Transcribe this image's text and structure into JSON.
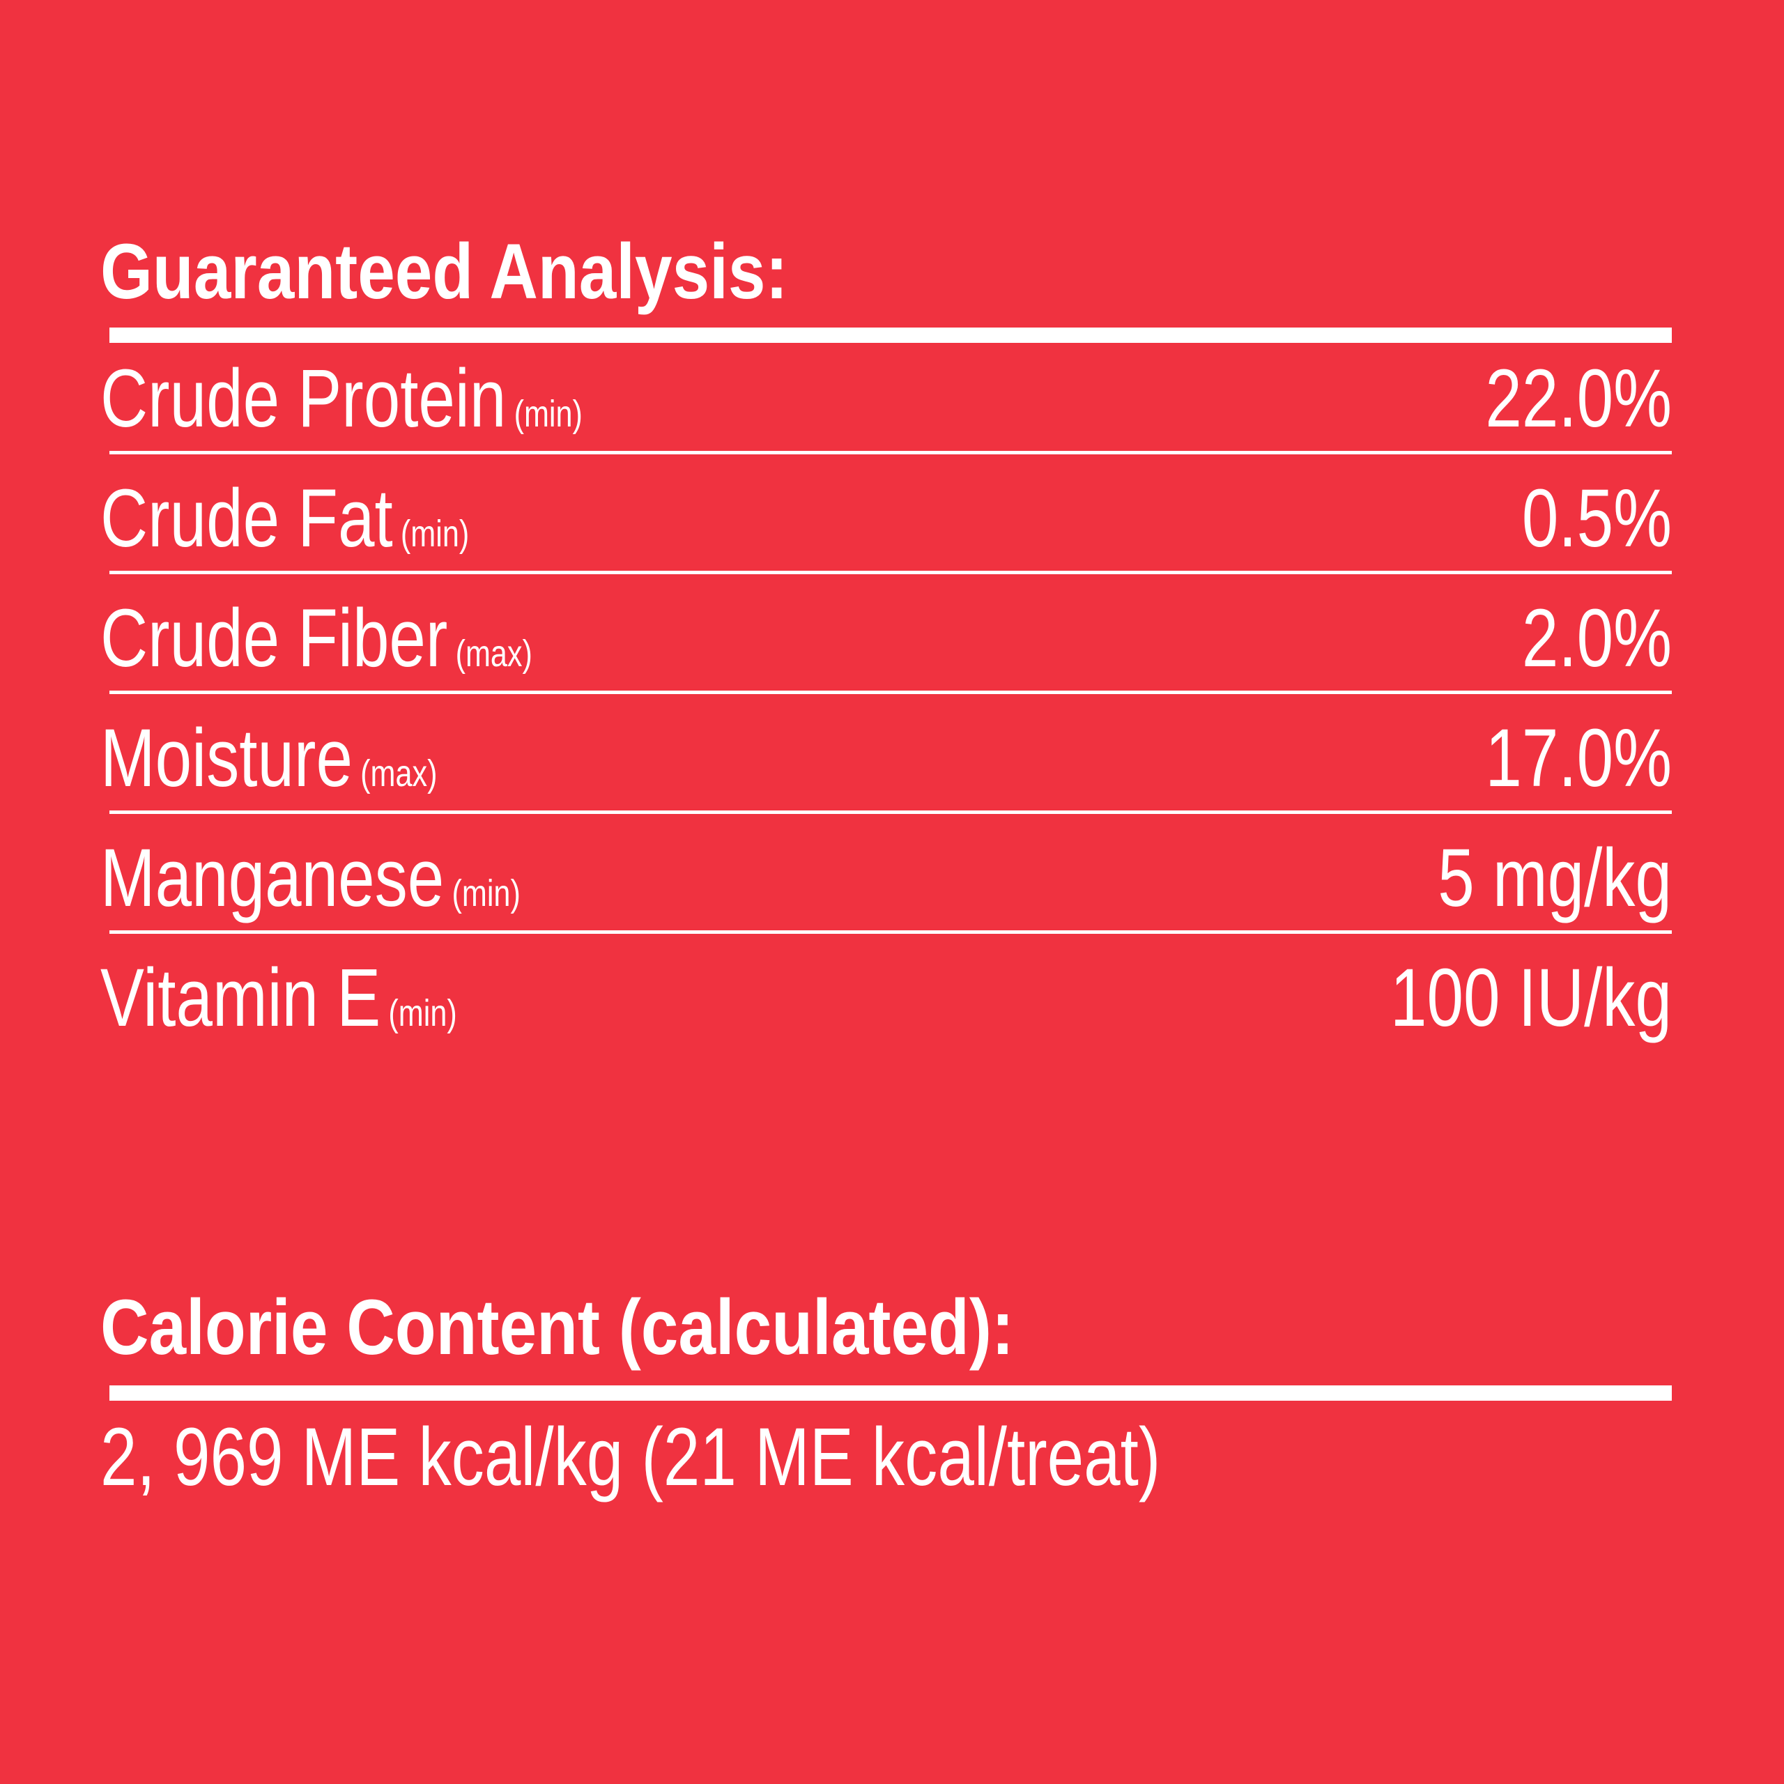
{
  "header": {
    "title": "Guaranteed Analysis:"
  },
  "table": {
    "rows": [
      {
        "name": "Crude Protein",
        "qualifier": "(min)",
        "value": "22.0%"
      },
      {
        "name": "Crude Fat",
        "qualifier": "(min)",
        "value": "0.5%"
      },
      {
        "name": "Crude Fiber",
        "qualifier": "(max)",
        "value": "2.0%"
      },
      {
        "name": "Moisture",
        "qualifier": "(max)",
        "value": "17.0%"
      },
      {
        "name": "Manganese",
        "qualifier": "(min)",
        "value": "5 mg/kg"
      },
      {
        "name": "Vitamin E",
        "qualifier": "(min)",
        "value": "100 IU/kg"
      }
    ]
  },
  "calorie": {
    "title": "Calorie Content (calculated):",
    "text": "2, 969 ME kcal/kg (21 ME kcal/treat)"
  }
}
